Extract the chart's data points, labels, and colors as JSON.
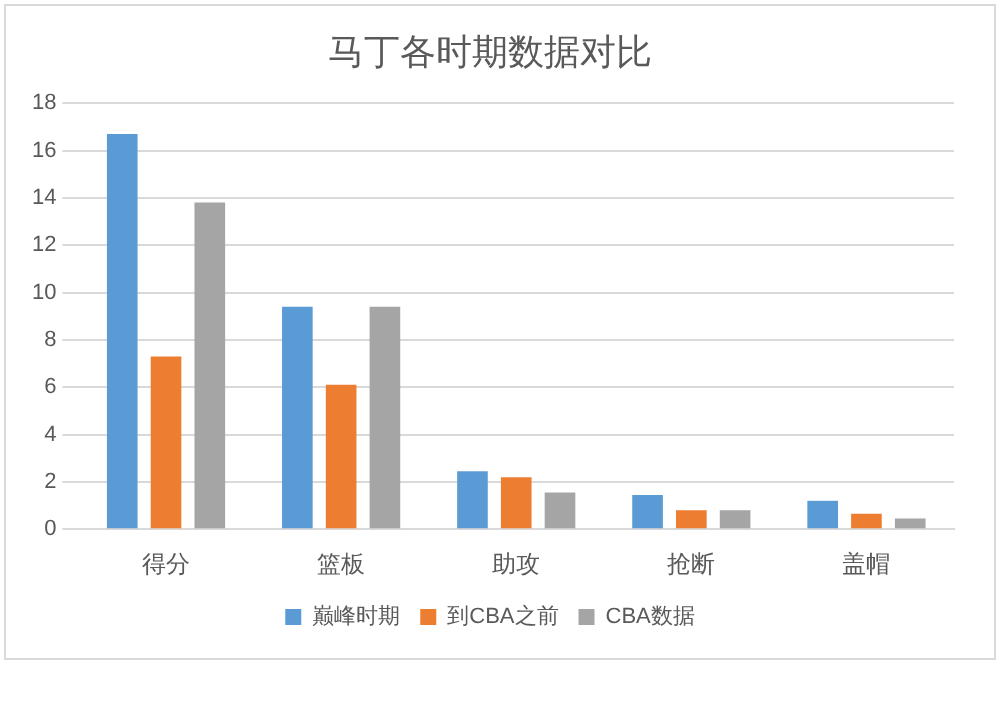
{
  "chart_data": {
    "type": "bar",
    "title": "马丁各时期数据对比",
    "categories": [
      "得分",
      "篮板",
      "助攻",
      "抢断",
      "盖帽"
    ],
    "series": [
      {
        "name": "巅峰时期",
        "color": "#5b9bd5",
        "values": [
          16.7,
          9.4,
          2.45,
          1.45,
          1.2
        ]
      },
      {
        "name": "到CBA之前",
        "color": "#ed7d31",
        "values": [
          7.3,
          6.1,
          2.2,
          0.8,
          0.65
        ]
      },
      {
        "name": "CBA数据",
        "color": "#a5a5a5",
        "values": [
          13.8,
          9.4,
          1.55,
          0.8,
          0.45
        ]
      }
    ],
    "ylim": [
      0,
      18
    ],
    "yticks": [
      0,
      2,
      4,
      6,
      8,
      10,
      12,
      14,
      16,
      18
    ],
    "grid": "y",
    "legend": "bottom"
  }
}
